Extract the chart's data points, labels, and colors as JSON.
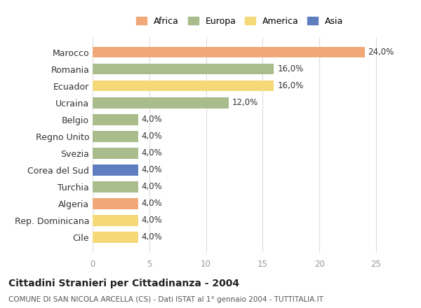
{
  "countries": [
    "Marocco",
    "Romania",
    "Ecuador",
    "Ucraina",
    "Belgio",
    "Regno Unito",
    "Svezia",
    "Corea del Sud",
    "Turchia",
    "Algeria",
    "Rep. Dominicana",
    "Cile"
  ],
  "values": [
    24.0,
    16.0,
    16.0,
    12.0,
    4.0,
    4.0,
    4.0,
    4.0,
    4.0,
    4.0,
    4.0,
    4.0
  ],
  "continents": [
    "Africa",
    "Europa",
    "America",
    "Europa",
    "Europa",
    "Europa",
    "Europa",
    "Asia",
    "Europa",
    "Africa",
    "America",
    "America"
  ],
  "colors": {
    "Africa": "#F0A878",
    "Europa": "#A8BC8C",
    "America": "#F5D878",
    "Asia": "#5F7EC0"
  },
  "legend_order": [
    "Africa",
    "Europa",
    "America",
    "Asia"
  ],
  "title": "Cittadini Stranieri per Cittadinanza - 2004",
  "subtitle": "COMUNE DI SAN NICOLA ARCELLA (CS) - Dati ISTAT al 1° gennaio 2004 - TUTTITALIA.IT",
  "xlim": [
    0,
    26
  ],
  "xticks": [
    0,
    5,
    10,
    15,
    20,
    25
  ],
  "background_color": "#ffffff",
  "grid_color": "#dddddd"
}
